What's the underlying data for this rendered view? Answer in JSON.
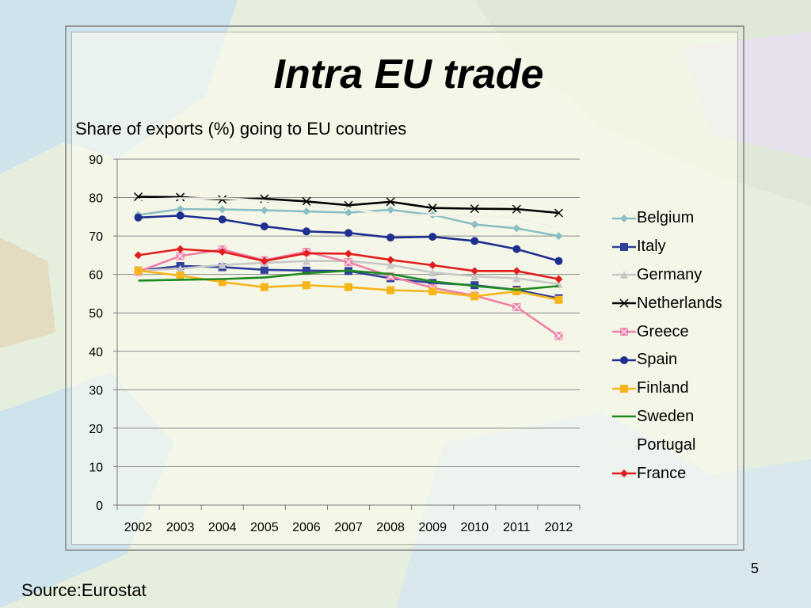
{
  "slide": {
    "title": "Intra EU trade",
    "source": "Source:Eurostat",
    "page_number": "5"
  },
  "chart_data": {
    "type": "line",
    "title": "Share of exports (%) going to EU countries",
    "xlabel": "",
    "ylabel": "",
    "x": [
      "2002",
      "2003",
      "2004",
      "2005",
      "2006",
      "2007",
      "2008",
      "2009",
      "2010",
      "2011",
      "2012"
    ],
    "ylim": [
      0,
      90
    ],
    "yticks": [
      0,
      10,
      20,
      30,
      40,
      50,
      60,
      70,
      80,
      90
    ],
    "grid": true,
    "legend_position": "right",
    "series": [
      {
        "name": "Belgium",
        "color": "#8cbfc4",
        "marker": "diamond",
        "values": [
          75.5,
          77,
          76.9,
          76.7,
          76.4,
          76.1,
          76.8,
          75.5,
          73,
          72,
          70
        ]
      },
      {
        "name": "Italy",
        "color": "#2f3f9a",
        "marker": "square",
        "values": [
          61,
          62.2,
          61.9,
          61.2,
          61,
          60.9,
          59,
          57.8,
          57.2,
          56,
          53.8
        ]
      },
      {
        "name": "Germany",
        "color": "#c8c8c8",
        "marker": "triangle",
        "values": [
          61,
          61.5,
          62.5,
          63,
          63.5,
          63.5,
          62.5,
          60.5,
          59.5,
          59,
          57.5
        ]
      },
      {
        "name": "Netherlands",
        "color": "#000000",
        "marker": "x",
        "values": [
          80.2,
          80.1,
          79.5,
          79.7,
          79,
          78,
          78.9,
          77.3,
          77.1,
          77,
          76
        ]
      },
      {
        "name": "Greece",
        "color": "#f07fa8",
        "marker": "boxx",
        "values": [
          60.7,
          64.8,
          66.5,
          63.7,
          65.9,
          63.2,
          59.5,
          56.5,
          54.5,
          51.5,
          44
        ]
      },
      {
        "name": "Spain",
        "color": "#1f2f8f",
        "marker": "circle",
        "values": [
          74.8,
          75.3,
          74.3,
          72.5,
          71.2,
          70.8,
          69.6,
          69.8,
          68.7,
          66.6,
          63.5
        ]
      },
      {
        "name": "Finland",
        "color": "#f7b51c",
        "marker": "square",
        "values": [
          61,
          59.7,
          58,
          56.7,
          57.2,
          56.7,
          55.9,
          55.6,
          54.3,
          55.6,
          53.4
        ]
      },
      {
        "name": "Sweden",
        "color": "#1f8a1f",
        "marker": "none",
        "values": [
          58.4,
          58.6,
          58.8,
          59.2,
          60.3,
          61,
          60.1,
          58.2,
          57,
          56,
          57
        ]
      },
      {
        "name": "Portugal",
        "color": "#f2f0e6",
        "marker": "none",
        "values": [
          79.5,
          79.8,
          79.8,
          79.2,
          77.7,
          77.3,
          75.3,
          75.5,
          75.2,
          74.7,
          72
        ]
      },
      {
        "name": "France",
        "color": "#e01e1e",
        "marker": "diamond",
        "values": [
          65,
          66.6,
          65.9,
          63.5,
          65.5,
          65.4,
          63.8,
          62.4,
          60.9,
          60.9,
          58.8
        ]
      }
    ]
  }
}
